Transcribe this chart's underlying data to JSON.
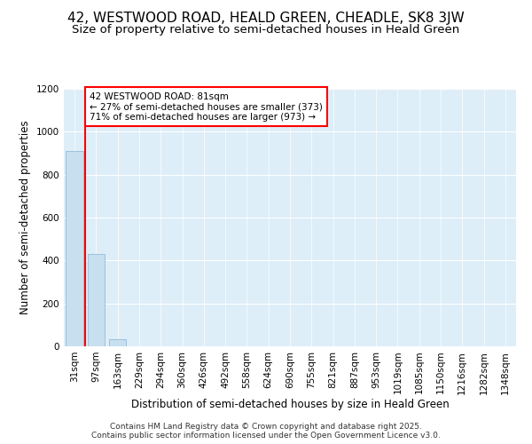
{
  "title": "42, WESTWOOD ROAD, HEALD GREEN, CHEADLE, SK8 3JW",
  "subtitle": "Size of property relative to semi-detached houses in Heald Green",
  "xlabel": "Distribution of semi-detached houses by size in Heald Green",
  "ylabel": "Number of semi-detached properties",
  "bins": [
    "31sqm",
    "97sqm",
    "163sqm",
    "229sqm",
    "294sqm",
    "360sqm",
    "426sqm",
    "492sqm",
    "558sqm",
    "624sqm",
    "690sqm",
    "755sqm",
    "821sqm",
    "887sqm",
    "953sqm",
    "1019sqm",
    "1085sqm",
    "1150sqm",
    "1216sqm",
    "1282sqm",
    "1348sqm"
  ],
  "values": [
    910,
    430,
    35,
    0,
    0,
    0,
    0,
    0,
    0,
    0,
    0,
    0,
    0,
    0,
    0,
    0,
    0,
    0,
    0,
    0,
    0
  ],
  "bar_color": "#c8dff0",
  "bar_edge_color": "#9dc0dc",
  "property_line_color": "red",
  "property_bin_index": 1,
  "annotation_text": "42 WESTWOOD ROAD: 81sqm\n← 27% of semi-detached houses are smaller (373)\n71% of semi-detached houses are larger (973) →",
  "annotation_box_facecolor": "white",
  "annotation_box_edgecolor": "red",
  "ylim": [
    0,
    1200
  ],
  "yticks": [
    0,
    200,
    400,
    600,
    800,
    1000,
    1200
  ],
  "footer_text": "Contains HM Land Registry data © Crown copyright and database right 2025.\nContains public sector information licensed under the Open Government Licence v3.0.",
  "background_color": "#ffffff",
  "plot_bg_color": "#ddeef8",
  "grid_color": "#ffffff",
  "title_fontsize": 11,
  "subtitle_fontsize": 9.5,
  "ylabel_fontsize": 8.5,
  "xlabel_fontsize": 8.5,
  "tick_fontsize": 7.5,
  "annotation_fontsize": 7.5,
  "footer_fontsize": 6.5
}
